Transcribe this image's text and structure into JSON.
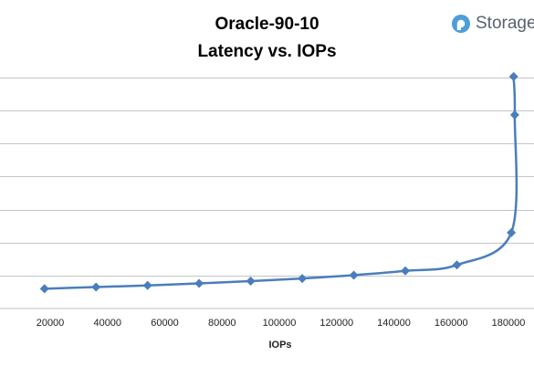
{
  "brand": {
    "name": "Storage",
    "logo_color": "#4f9ed6",
    "text_color": "#5a6270"
  },
  "chart_data": {
    "type": "line",
    "title": "Oracle-90-10",
    "subtitle": "Latency vs. IOPs",
    "xlabel": "IOPs",
    "ylabel": "",
    "x_ticks": [
      20000,
      40000,
      60000,
      80000,
      100000,
      120000,
      140000,
      160000,
      180000
    ],
    "xlim": [
      10000,
      185000
    ],
    "ylim": [
      0,
      70
    ],
    "y_gridlines": [
      10,
      20,
      30,
      40,
      50,
      60,
      70
    ],
    "y_tick_labels_visible": false,
    "grid": true,
    "series": [
      {
        "color": "#4a7ebb",
        "marker": "diamond",
        "points": [
          [
            18000,
            6.0
          ],
          [
            36000,
            6.5
          ],
          [
            54000,
            7.0
          ],
          [
            72000,
            7.6
          ],
          [
            90000,
            8.3
          ],
          [
            108000,
            9.1
          ],
          [
            126000,
            10.1
          ],
          [
            144000,
            11.4
          ],
          [
            162000,
            13.2
          ],
          [
            181000,
            23.0
          ],
          [
            182200,
            58.7
          ],
          [
            181800,
            70.3
          ]
        ]
      }
    ]
  }
}
